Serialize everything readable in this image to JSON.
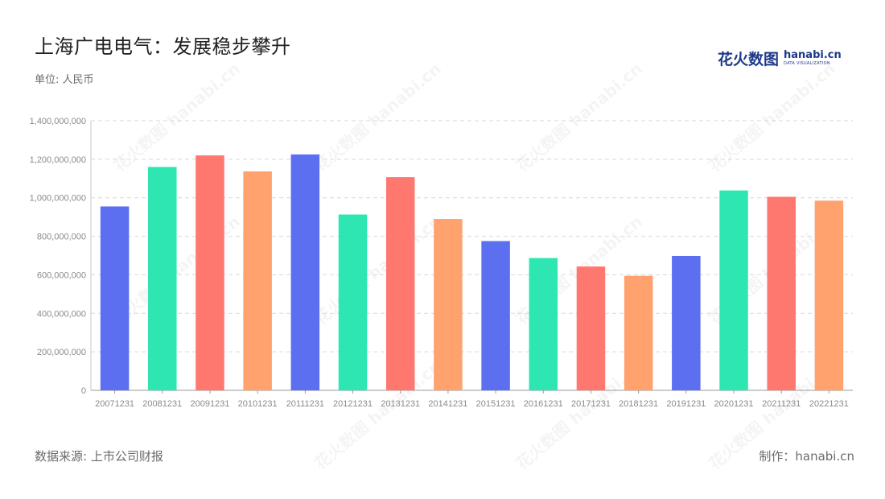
{
  "title": "上海广电电气：发展稳步攀升",
  "unit": "单位: 人民币",
  "source": "数据来源: 上市公司财报",
  "credit": "制作：hanabi.cn",
  "logo": {
    "cn": "花火数图",
    "en": "hanabi.cn",
    "sub": "DATA VISUALIZATION"
  },
  "watermark_text": "花火数图 hanabi.cn",
  "colors": [
    "#5b6ff0",
    "#2ee6b2",
    "#ff7870",
    "#ffa26e"
  ],
  "chart_data": {
    "type": "bar",
    "title": "",
    "xlabel": "",
    "ylabel": "",
    "grid": true,
    "ylim": [
      0,
      1400000000
    ],
    "yticks": [
      0,
      200000000,
      400000000,
      600000000,
      800000000,
      1000000000,
      1200000000,
      1400000000
    ],
    "ytick_labels": [
      "0",
      "200,000,000",
      "400,000,000",
      "600,000,000",
      "800,000,000",
      "1,000,000,000",
      "1,200,000,000",
      "1,400,000,000"
    ],
    "categories": [
      "20071231",
      "20081231",
      "20091231",
      "20101231",
      "20111231",
      "20121231",
      "20131231",
      "20141231",
      "20151231",
      "20161231",
      "20171231",
      "20181231",
      "20191231",
      "20201231",
      "20211231",
      "20221231"
    ],
    "values": [
      955000000,
      1160000000,
      1220000000,
      1137000000,
      1225000000,
      913000000,
      1107000000,
      890000000,
      775000000,
      687000000,
      643000000,
      595000000,
      698000000,
      1038000000,
      1005000000,
      985000000
    ]
  }
}
